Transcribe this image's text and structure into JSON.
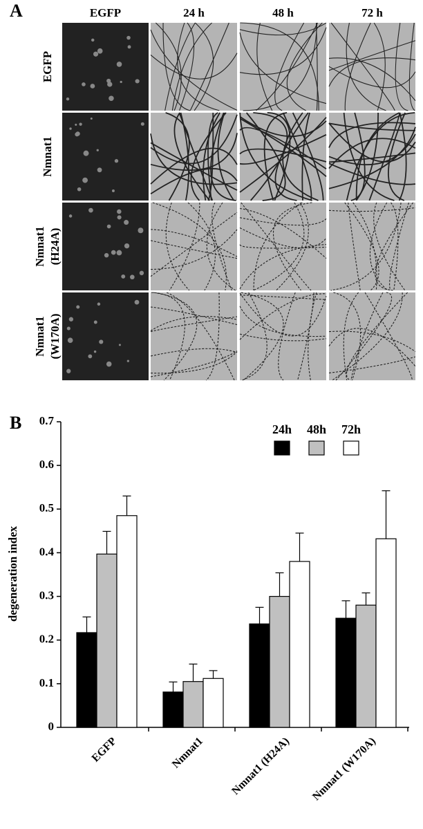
{
  "panel_a": {
    "label": "A",
    "columns": [
      "EGFP",
      "24 h",
      "48 h",
      "72 h"
    ],
    "rows": [
      [
        "EGFP"
      ],
      [
        "Nmnat1"
      ],
      [
        "Nmnat1",
        "(H24A)"
      ],
      [
        "Nmnat1",
        "(W170A)"
      ]
    ]
  },
  "chart_data": {
    "type": "bar",
    "panel_label": "B",
    "y_label": "degeneration index",
    "categories": [
      "EGFP",
      "Nmnat1",
      "Nmnat1 (H24A)",
      "Nmnat1 (W170A)"
    ],
    "series": [
      {
        "name": "24h",
        "color": "#000000",
        "values": [
          0.217,
          0.081,
          0.237,
          0.25
        ],
        "errors": [
          0.036,
          0.023,
          0.038,
          0.04
        ]
      },
      {
        "name": "48h",
        "color": "#c0c0c0",
        "values": [
          0.397,
          0.105,
          0.3,
          0.28
        ],
        "errors": [
          0.052,
          0.04,
          0.054,
          0.028
        ]
      },
      {
        "name": "72h",
        "color": "#ffffff",
        "values": [
          0.485,
          0.112,
          0.38,
          0.432
        ],
        "errors": [
          0.045,
          0.018,
          0.065,
          0.11
        ]
      }
    ],
    "ylim": [
      0,
      0.7
    ],
    "yticks": [
      0,
      0.1,
      0.2,
      0.3,
      0.4,
      0.5,
      0.6,
      0.7
    ]
  }
}
